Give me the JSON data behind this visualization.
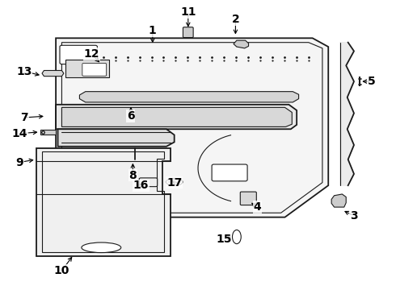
{
  "bg_color": "#ffffff",
  "line_color": "#1a1a1a",
  "label_color": "#000000",
  "label_fontsize": 10,
  "label_fontweight": "bold",
  "leaders": {
    "1": [
      0.385,
      0.895,
      0.385,
      0.845
    ],
    "2": [
      0.595,
      0.935,
      0.595,
      0.875
    ],
    "3": [
      0.895,
      0.255,
      0.865,
      0.275
    ],
    "4": [
      0.65,
      0.285,
      0.63,
      0.305
    ],
    "5": [
      0.94,
      0.72,
      0.91,
      0.72
    ],
    "6": [
      0.33,
      0.6,
      0.33,
      0.64
    ],
    "7": [
      0.06,
      0.595,
      0.115,
      0.6
    ],
    "8": [
      0.335,
      0.395,
      0.335,
      0.445
    ],
    "9": [
      0.048,
      0.44,
      0.09,
      0.45
    ],
    "10": [
      0.155,
      0.065,
      0.185,
      0.12
    ],
    "11": [
      0.475,
      0.96,
      0.475,
      0.9
    ],
    "12": [
      0.23,
      0.815,
      0.255,
      0.78
    ],
    "13": [
      0.06,
      0.755,
      0.105,
      0.74
    ],
    "14": [
      0.048,
      0.54,
      0.1,
      0.545
    ],
    "15": [
      0.565,
      0.175,
      0.59,
      0.185
    ],
    "16": [
      0.355,
      0.36,
      0.365,
      0.375
    ],
    "17": [
      0.44,
      0.37,
      0.435,
      0.375
    ]
  }
}
